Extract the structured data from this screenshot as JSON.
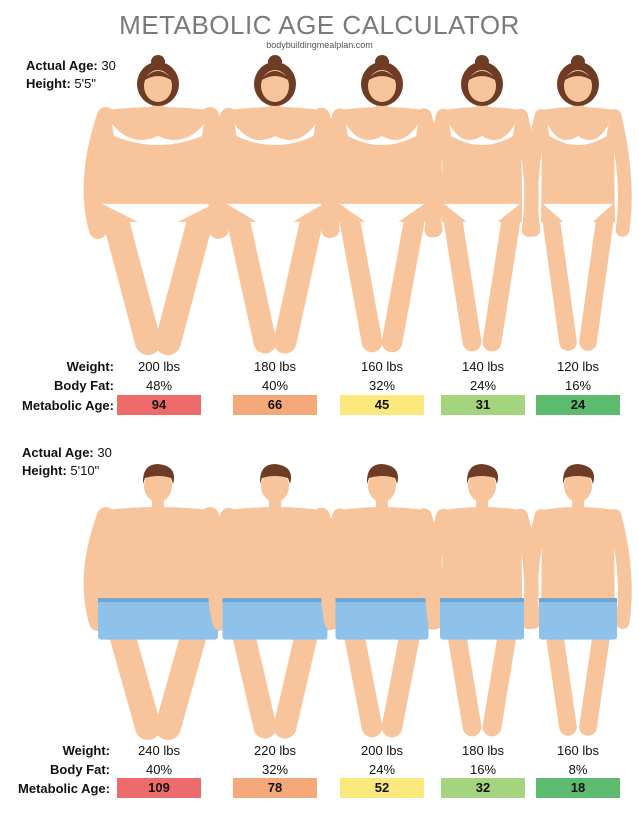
{
  "title": "METABOLIC AGE CALCULATOR",
  "subtitle": "bodybuildingmealplan.com",
  "sections": [
    {
      "actual_age_label": "Actual Age:",
      "actual_age": "30",
      "height_label": "Height:",
      "height": "5'5\"",
      "row_labels": [
        "Weight:",
        "Body Fat:",
        "Metabolic Age:"
      ],
      "columns": [
        {
          "weight": "200 lbs",
          "body_fat": "48%",
          "metabolic_age": "94",
          "color": "#ee6b6b"
        },
        {
          "weight": "180 lbs",
          "body_fat": "40%",
          "metabolic_age": "66",
          "color": "#f5a97a"
        },
        {
          "weight": "160 lbs",
          "body_fat": "32%",
          "metabolic_age": "45",
          "color": "#fbe97d"
        },
        {
          "weight": "140 lbs",
          "body_fat": "24%",
          "metabolic_age": "31",
          "color": "#a4d47e"
        },
        {
          "weight": "120 lbs",
          "body_fat": "16%",
          "metabolic_age": "24",
          "color": "#5dbb70"
        }
      ]
    },
    {
      "actual_age_label": "Actual Age:",
      "actual_age": "30",
      "height_label": "Height:",
      "height": "5'10\"",
      "row_labels": [
        "Weight:",
        "Body Fat:",
        "Metabolic Age:"
      ],
      "columns": [
        {
          "weight": "240 lbs",
          "body_fat": "40%",
          "metabolic_age": "109",
          "color": "#ee6b6b"
        },
        {
          "weight": "220 lbs",
          "body_fat": "32%",
          "metabolic_age": "78",
          "color": "#f5a97a"
        },
        {
          "weight": "200 lbs",
          "body_fat": "24%",
          "metabolic_age": "52",
          "color": "#fbe97d"
        },
        {
          "weight": "180 lbs",
          "body_fat": "16%",
          "metabolic_age": "32",
          "color": "#a4d47e"
        },
        {
          "weight": "160 lbs",
          "body_fat": "8%",
          "metabolic_age": "18",
          "color": "#5dbb70"
        }
      ]
    }
  ]
}
